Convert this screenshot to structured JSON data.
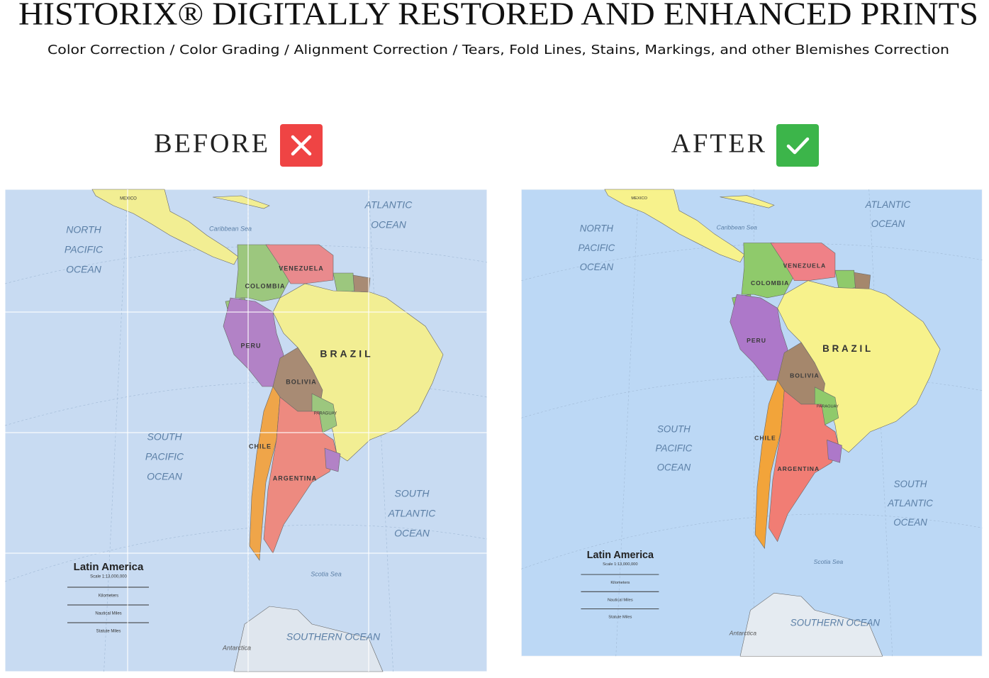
{
  "header": {
    "title": "HISTORIX® DIGITALLY RESTORED AND ENHANCED PRINTS",
    "subtitle": "Color Correction / Color Grading / Alignment Correction / Tears, Fold Lines, Stains, Markings, and other Blemishes Correction"
  },
  "panels": [
    {
      "label": "BEFORE"
    },
    {
      "label": "AFTER"
    }
  ],
  "map": {
    "labels": [
      "MEXICO",
      "NORTH",
      "PACIFIC",
      "OCEAN",
      "ATLANTIC",
      "OCEAN",
      "Caribbean Sea",
      "VENEZUELA",
      "COLOMBIA",
      "PERU",
      "BRAZIL",
      "BOLIVIA",
      "PARAGUAY",
      "CHILE",
      "ARGENTINA",
      "SOUTH",
      "PACIFIC",
      "OCEAN",
      "SOUTH",
      "ATLANTIC",
      "OCEAN",
      "Latin America",
      "Scale 1:13,000,000",
      "Kilometers",
      "Nautical Miles",
      "Statute Miles",
      "Scotia Sea",
      "SOUTHERN OCEAN",
      "Antarctica"
    ]
  }
}
